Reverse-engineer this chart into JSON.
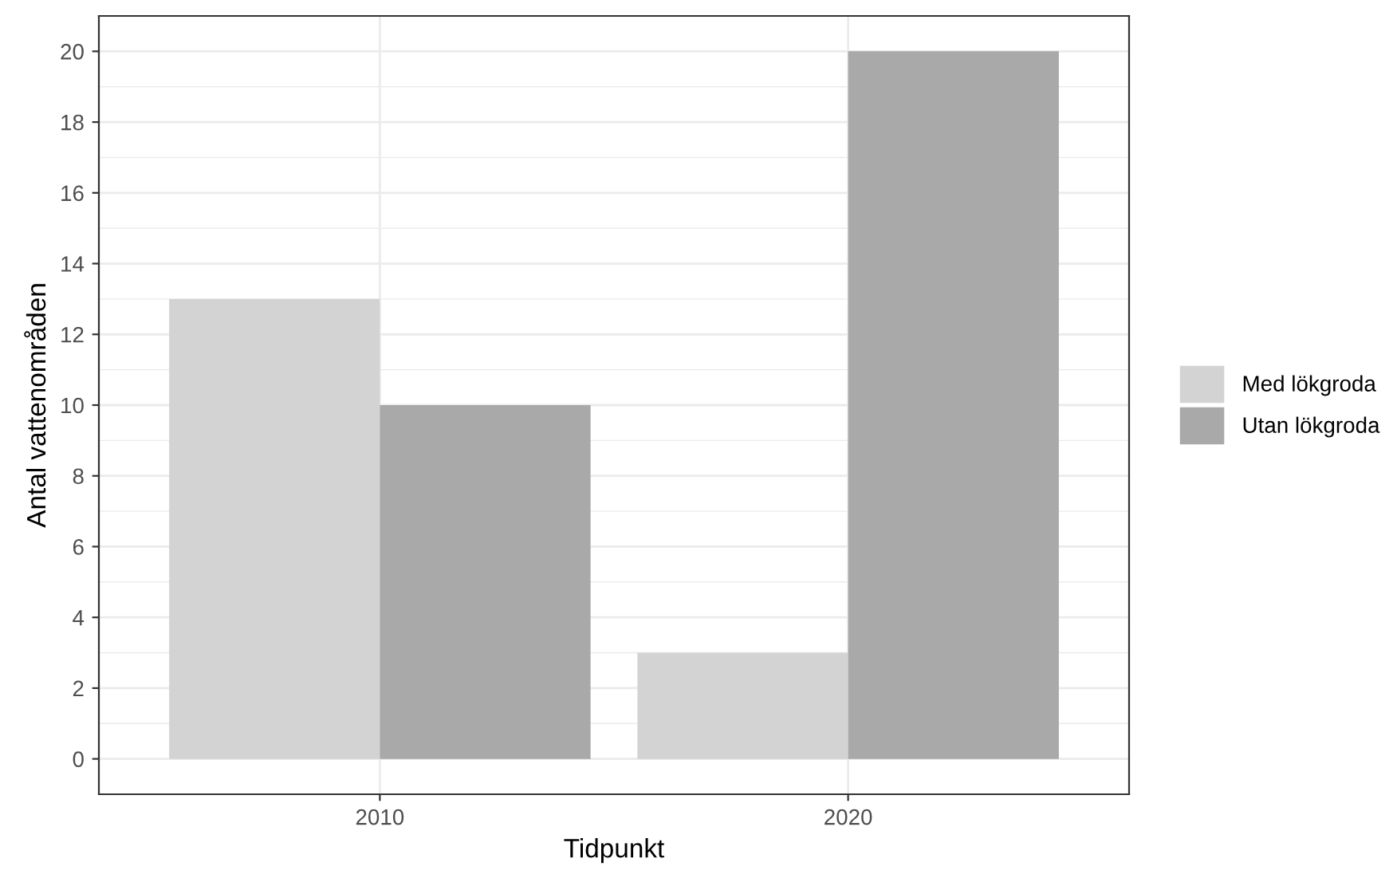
{
  "chart_data": {
    "type": "bar",
    "xlabel": "Tidpunkt",
    "ylabel": "Antal vattenområden",
    "categories": [
      "2010",
      "2020"
    ],
    "series": [
      {
        "name": "Med lökgroda",
        "color": "#d3d3d3",
        "values": [
          13,
          3
        ]
      },
      {
        "name": "Utan lökgroda",
        "color": "#a9a9a9",
        "values": [
          10,
          20
        ]
      }
    ],
    "ylim": [
      -1,
      21
    ],
    "yticks": [
      0,
      2,
      4,
      6,
      8,
      10,
      12,
      14,
      16,
      18,
      20
    ],
    "grid": true,
    "legend": "right"
  }
}
